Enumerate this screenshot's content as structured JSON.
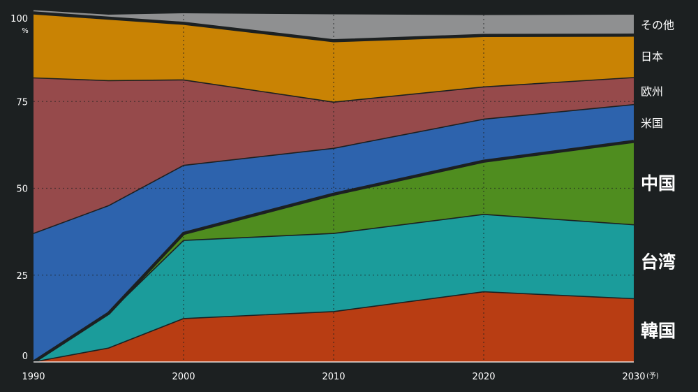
{
  "chart_data": {
    "type": "area",
    "stacked": true,
    "normalized": true,
    "x": [
      1990,
      1995,
      2000,
      2010,
      2020,
      2030
    ],
    "x_tick_labels": [
      "1990",
      "2000",
      "2010",
      "2020",
      "2030"
    ],
    "x_last_suffix": "(予)",
    "y_tick_labels": [
      "0",
      "25",
      "50",
      "75",
      "100"
    ],
    "y_unit": "%",
    "ylim": [
      0,
      100
    ],
    "grid": true,
    "series": [
      {
        "name": "韓国",
        "color": "#b83d13",
        "values": [
          0,
          4,
          12.5,
          14.5,
          20.2,
          18.2
        ]
      },
      {
        "name": "台湾",
        "color": "#1b9c9b",
        "values": [
          0,
          10,
          22.5,
          22.5,
          22.3,
          21.3
        ]
      },
      {
        "name": "中国",
        "color": "#4f8d1f",
        "values": [
          0,
          0,
          2.0,
          11.3,
          15.3,
          24.0
        ]
      },
      {
        "name": "米国",
        "color": "#2d63ad",
        "values": [
          37,
          31,
          19.6,
          13.2,
          12.1,
          10.6
        ]
      },
      {
        "name": "欧州",
        "color": "#964a4b",
        "values": [
          44.8,
          36,
          24.6,
          13.3,
          9.3,
          7.8
        ]
      },
      {
        "name": "日本",
        "color": "#c98304",
        "values": [
          18.7,
          18,
          16.3,
          17.7,
          14.8,
          12.2
        ]
      },
      {
        "name": "その他",
        "color": "#8f9091",
        "values": [
          0.8,
          1.0,
          2.9,
          7.6,
          5.9,
          5.9
        ]
      }
    ],
    "legend_placement": "right",
    "legend_labels": [
      {
        "text": "その他",
        "size": "small"
      },
      {
        "text": "日本",
        "size": "small"
      },
      {
        "text": "欧州",
        "size": "small"
      },
      {
        "text": "米国",
        "size": "small"
      },
      {
        "text": "中国",
        "size": "large"
      },
      {
        "text": "台湾",
        "size": "large"
      },
      {
        "text": "韓国",
        "size": "large"
      }
    ]
  }
}
